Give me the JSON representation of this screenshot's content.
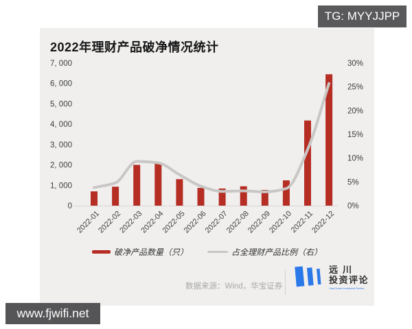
{
  "overlay": {
    "tg_badge": "TG: MYYJJPP",
    "watermark": "www.fjwifi.net"
  },
  "chart_data": {
    "type": "bar",
    "title": "2022年理财产品破净情况统计",
    "categories": [
      "2022-01",
      "2022-02",
      "2022-03",
      "2022-04",
      "2022-05",
      "2022-06",
      "2022-07",
      "2022-08",
      "2022-09",
      "2022-10",
      "2022-11",
      "2022-12"
    ],
    "series": [
      {
        "name": "破净产品数量（只）",
        "type": "bar",
        "axis": "left",
        "color": "#b52d23",
        "values": [
          700,
          930,
          2000,
          2060,
          1300,
          870,
          840,
          950,
          770,
          1240,
          4180,
          6450
        ]
      },
      {
        "name": "占全理财产品比例（右）",
        "type": "line",
        "axis": "right",
        "color": "#c9c7c5",
        "values": [
          3.8,
          4.8,
          9.3,
          9.0,
          6.5,
          4.1,
          3.0,
          3.1,
          2.9,
          3.6,
          11.8,
          25.7
        ]
      }
    ],
    "left_axis": {
      "min": 0,
      "max": 7000,
      "step": 1000
    },
    "right_axis": {
      "min": 0,
      "max": 30,
      "step": 5,
      "suffix": "%"
    },
    "legend_position": "bottom",
    "grid": false
  },
  "footer": {
    "source": "数据来源：Wind，华宝证券",
    "logo": {
      "line1": "远川",
      "line2": "投资评论",
      "subtext": "YuanChuan Investment Review",
      "color": "#2b79e8"
    }
  }
}
